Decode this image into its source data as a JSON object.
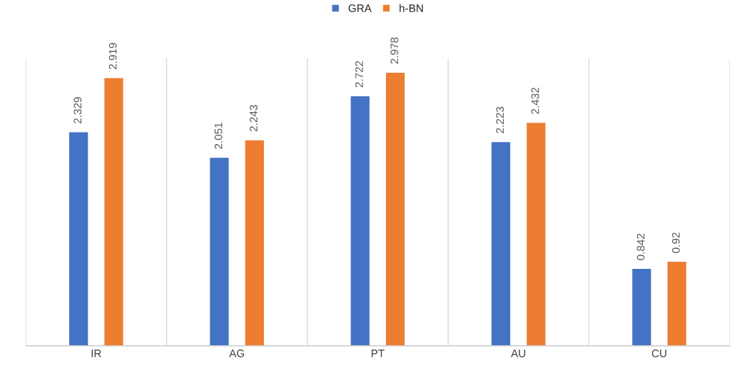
{
  "chart_data": {
    "type": "bar",
    "categories": [
      "IR",
      "AG",
      "PT",
      "AU",
      "CU"
    ],
    "series": [
      {
        "name": "GRA",
        "color": "#4472c4",
        "values": [
          2.329,
          2.051,
          2.722,
          2.223,
          0.842
        ]
      },
      {
        "name": "h-BN",
        "color": "#ed7d31",
        "values": [
          2.919,
          2.243,
          2.978,
          2.432,
          0.92
        ]
      }
    ],
    "data_labels": true,
    "legend": "top",
    "grid": "x",
    "tick_labels": "x"
  }
}
